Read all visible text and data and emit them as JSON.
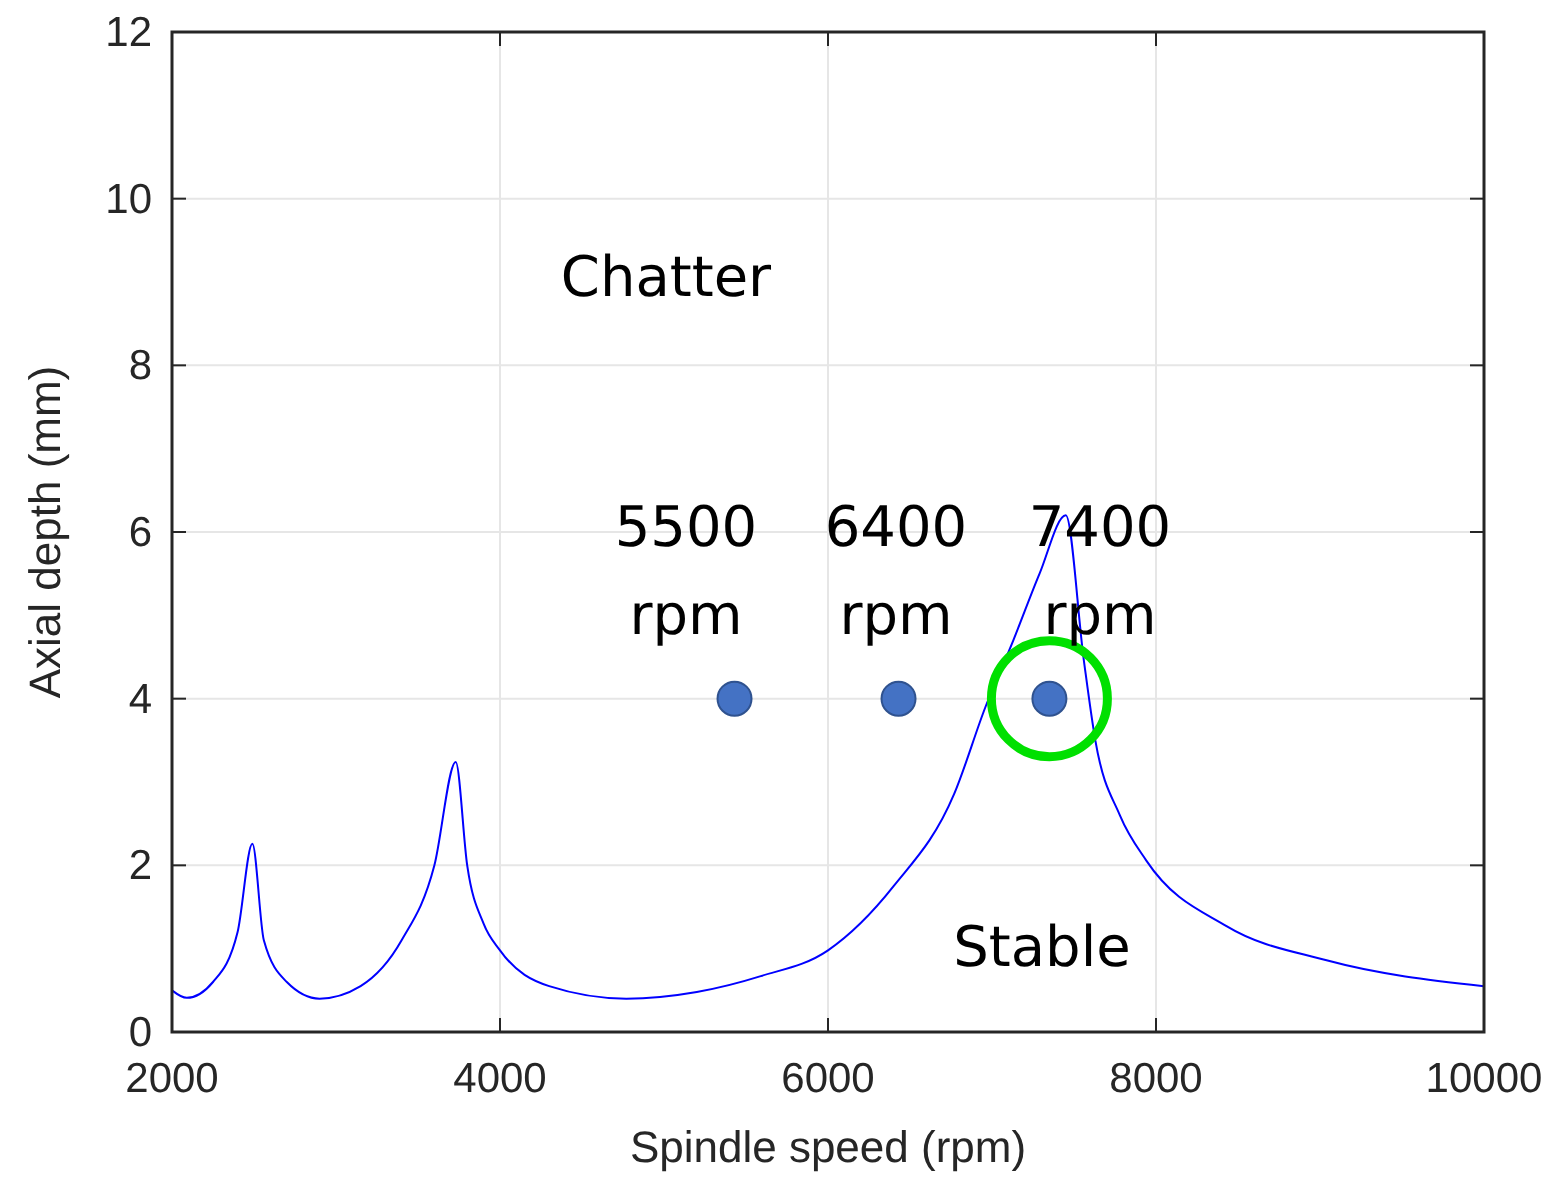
{
  "chart_data": {
    "type": "line",
    "xlabel": "Spindle speed (rpm)",
    "ylabel": "Axial depth (mm)",
    "xlim": [
      2000,
      10000
    ],
    "xticks": [
      2000,
      4000,
      6000,
      8000,
      10000
    ],
    "ylim": [
      0,
      12
    ],
    "yticks": [
      0,
      2,
      4,
      6,
      8,
      10,
      12
    ],
    "grid": true,
    "series": [
      {
        "color": "#0000ff",
        "x": [
          2000,
          2090,
          2250,
          2400,
          2490,
          2560,
          2700,
          2900,
          3150,
          3400,
          3600,
          3730,
          3800,
          3900,
          4000,
          4300,
          4770,
          5200,
          5590,
          6000,
          6400,
          6770,
          6960,
          7130,
          7290,
          7450,
          7560,
          7630,
          7780,
          7940,
          8430,
          9040,
          10000
        ],
        "values": [
          0.5,
          0.41,
          0.6,
          1.2,
          2.26,
          1.1,
          0.6,
          0.4,
          0.55,
          1.1,
          2.0,
          3.24,
          2.0,
          1.3,
          0.98,
          0.55,
          0.4,
          0.48,
          0.67,
          0.98,
          1.75,
          2.86,
          3.9,
          4.7,
          5.5,
          6.2,
          4.46,
          3.5,
          2.6,
          2.06,
          1.27,
          0.86,
          0.55
        ]
      },
      {
        "type": "scatter",
        "color": "#4472c4",
        "marker": "circle",
        "x": [
          5430,
          6430,
          7350
        ],
        "values": [
          4,
          4,
          4
        ]
      }
    ],
    "annotations": [
      "Chatter",
      "Stable",
      "5500 rpm",
      "6400 rpm",
      "7400 rpm"
    ]
  }
}
